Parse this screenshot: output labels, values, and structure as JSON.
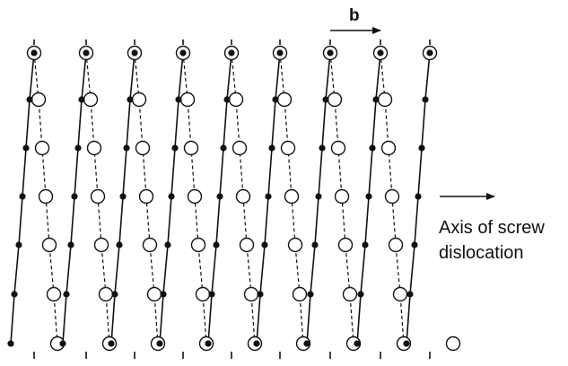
{
  "labels": {
    "burgers_vector": "b",
    "axis_line1": "Axis of screw",
    "axis_line2": "dislocation"
  },
  "lattice": {
    "columns": 9,
    "rows": 7
  },
  "colors": {
    "ink": "#111111",
    "background": "#ffffff"
  }
}
